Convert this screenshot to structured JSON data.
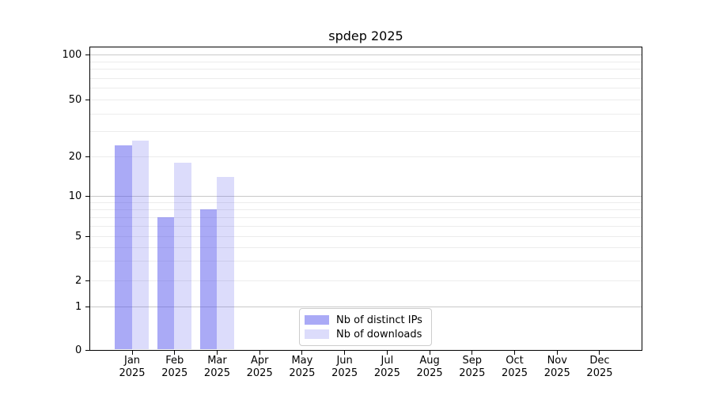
{
  "chart_data": {
    "type": "bar",
    "title": "spdep 2025",
    "categories": [
      "Jan 2025",
      "Feb 2025",
      "Mar 2025",
      "Apr 2025",
      "May 2025",
      "Jun 2025",
      "Jul 2025",
      "Aug 2025",
      "Sep 2025",
      "Oct 2025",
      "Nov 2025",
      "Dec 2025"
    ],
    "series": [
      {
        "name": "Nb of distinct IPs",
        "color": "rgba(70,70,235,0.46)",
        "color_hex": "#aaaaf6",
        "values": [
          24,
          7,
          8,
          null,
          null,
          null,
          null,
          null,
          null,
          null,
          null,
          null
        ]
      },
      {
        "name": "Nb of downloads",
        "color": "rgba(70,70,235,0.19)",
        "color_hex": "#dbdbf9",
        "values": [
          26,
          18,
          14,
          null,
          null,
          null,
          null,
          null,
          null,
          null,
          null,
          null
        ]
      }
    ],
    "yscale": "symlog",
    "yticks": [
      100,
      50,
      20,
      10,
      5,
      2,
      1,
      0
    ],
    "ylim": [
      0,
      112
    ],
    "grid": "horizontal major and log-minor lines",
    "legend_position": "lower center inside plot"
  },
  "colors": {
    "bar_ips": "#aaaaf6",
    "bar_downloads": "#dbdbf9",
    "grid_major": "#c9c9c9",
    "grid_minor": "#ececec",
    "axis": "#000000",
    "legend_border": "#cccccc",
    "background": "#ffffff",
    "text": "#000000"
  }
}
